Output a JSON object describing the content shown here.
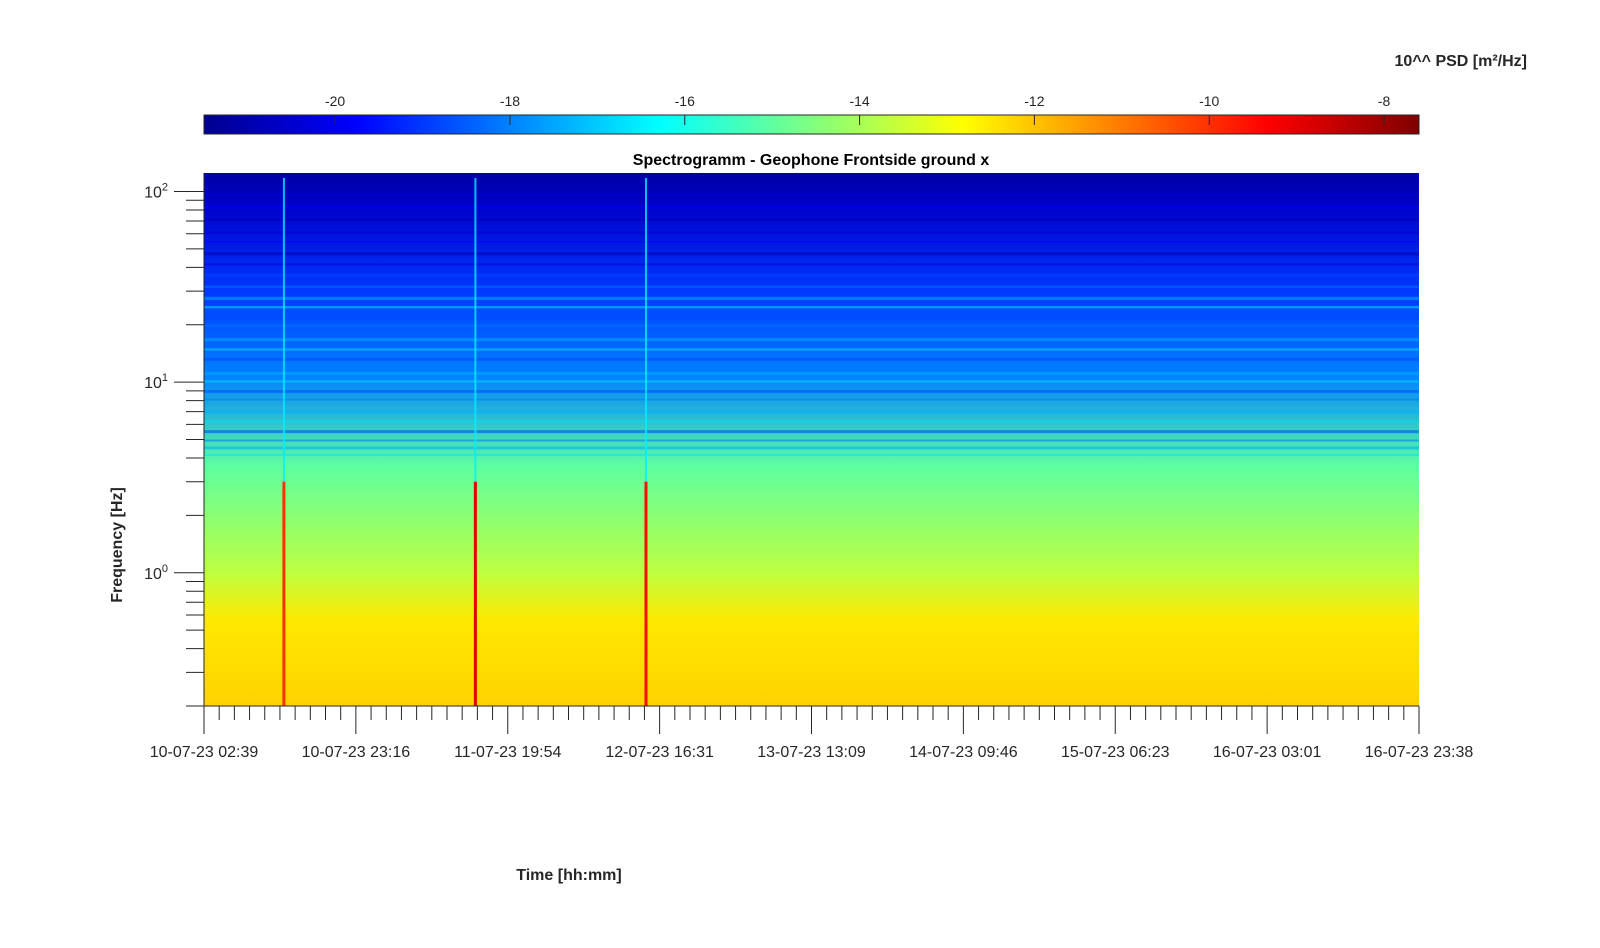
{
  "chart_data": {
    "type": "heatmap",
    "title": "Spectrogramm - Geophone Frontside ground x",
    "xlabel": "Time [hh:mm]",
    "ylabel": "Frequency [Hz]",
    "colorbar": {
      "label": "10^^ PSD [m²/Hz]",
      "range": [
        -21.5,
        -7.6
      ],
      "ticks": [
        "-20",
        "-18",
        "-16",
        "-14",
        "-12",
        "-10",
        "-8"
      ],
      "tick_values": [
        -20,
        -18,
        -16,
        -14,
        -12,
        -10,
        -8
      ],
      "colormap": "jet",
      "placement": "top"
    },
    "x_tick_labels": [
      "10-07-23 02:39",
      "10-07-23 23:16",
      "11-07-23 19:54",
      "12-07-23 16:31",
      "13-07-23 13:09",
      "14-07-23 09:46",
      "15-07-23 06:23",
      "16-07-23 03:01",
      "16-07-23 23:38"
    ],
    "y_scale": "log",
    "y_range": [
      0.2,
      125
    ],
    "y_tick_values": [
      1,
      10,
      100
    ],
    "y_tick_labels": [
      {
        "base": "10",
        "exp": "0"
      },
      {
        "base": "10",
        "exp": "1"
      },
      {
        "base": "10",
        "exp": "2"
      }
    ],
    "psd_levels": {
      "above_50_hz": -20.5,
      "around_10_hz": -18,
      "around_1_hz": -15,
      "below_0.6_hz": -12.5
    },
    "spikes": [
      {
        "time": "10-07-23 13:30",
        "peak_psd": -10
      },
      {
        "time": "11-07-23 15:30",
        "peak_psd": -9
      },
      {
        "time": "12-07-23 14:40",
        "peak_psd": -9.5
      }
    ]
  }
}
